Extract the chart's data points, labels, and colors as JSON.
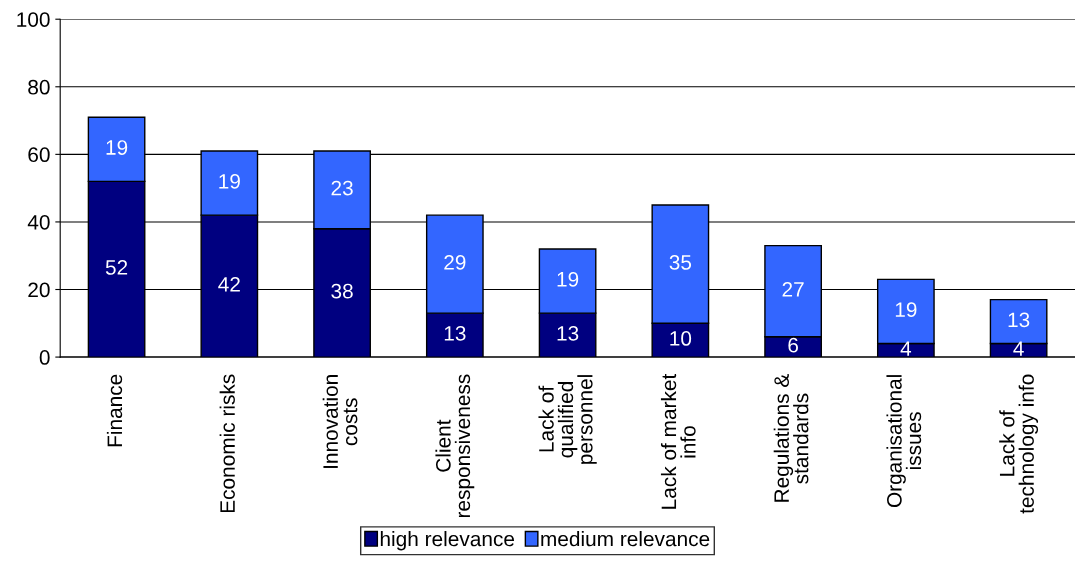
{
  "chart_data": {
    "type": "bar",
    "stacked": true,
    "categories": [
      "Finance",
      "Economic risks",
      "Innovation\ncosts",
      "Client\nresponsiveness",
      "Lack of\nqualified\npersonnel",
      "Lack of market\ninfo",
      "Regulations &\nstandards",
      "Organisational\nissues",
      "Lack of\ntechnology info"
    ],
    "series": [
      {
        "name": "high relevance",
        "color": "#000080",
        "values": [
          52,
          42,
          38,
          13,
          13,
          10,
          6,
          4,
          4
        ]
      },
      {
        "name": "medium relevance",
        "color": "#3366ff",
        "values": [
          19,
          19,
          23,
          29,
          19,
          35,
          27,
          19,
          13
        ]
      }
    ],
    "ylim": [
      0,
      100
    ],
    "yticks": [
      0,
      20,
      40,
      60,
      80,
      100
    ],
    "grid": "y",
    "legend": "bottom",
    "data_labels": true
  }
}
